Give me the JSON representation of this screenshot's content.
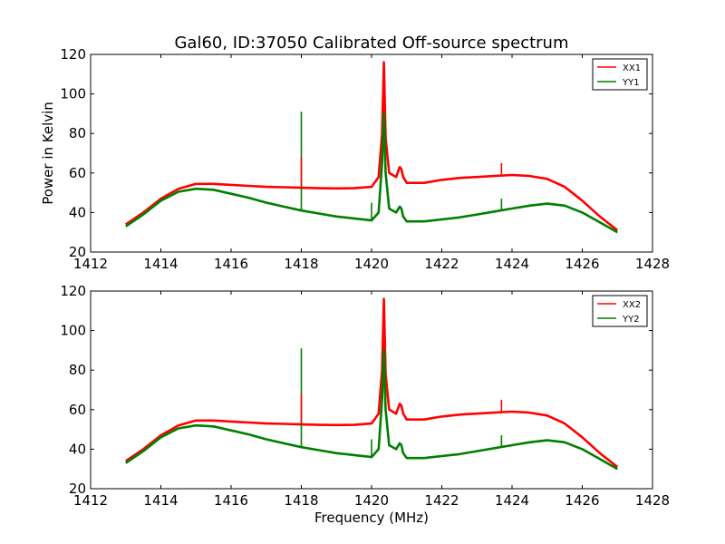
{
  "title": "Gal60, ID:37050 Calibrated Off-source spectrum",
  "chart_data": [
    {
      "type": "line",
      "ylabel": "Power in Kelvin",
      "xlabel": "",
      "xlim": [
        1412,
        1428
      ],
      "ylim": [
        20,
        120
      ],
      "xticks": [
        "1412",
        "1414",
        "1416",
        "1418",
        "1420",
        "1422",
        "1424",
        "1426",
        "1428"
      ],
      "yticks": [
        "20",
        "40",
        "60",
        "80",
        "100",
        "120"
      ],
      "legend_position": "top-right",
      "series": [
        {
          "name": "XX1",
          "color": "#ff0000",
          "x": [
            1413.0,
            1413.5,
            1414.0,
            1414.5,
            1415.0,
            1415.5,
            1416.0,
            1416.5,
            1417.0,
            1417.5,
            1418.0,
            1418.5,
            1419.0,
            1419.5,
            1420.0,
            1420.2,
            1420.3,
            1420.35,
            1420.4,
            1420.5,
            1420.7,
            1420.8,
            1420.85,
            1420.9,
            1421.0,
            1421.5,
            1422.0,
            1422.5,
            1423.0,
            1423.5,
            1424.0,
            1424.5,
            1425.0,
            1425.5,
            1426.0,
            1426.5,
            1427.0
          ],
          "y": [
            34,
            40,
            47,
            52,
            54.5,
            54.5,
            54,
            53.5,
            53,
            52.8,
            52.5,
            52.3,
            52.2,
            52.3,
            53,
            58,
            80,
            116,
            78,
            60,
            58,
            63,
            62,
            58,
            55,
            55,
            56.5,
            57.5,
            58,
            58.5,
            59,
            58.5,
            57,
            53,
            46,
            38,
            31
          ]
        },
        {
          "name": "YY1",
          "color": "#007f00",
          "x": [
            1413.0,
            1413.5,
            1414.0,
            1414.5,
            1415.0,
            1415.5,
            1416.0,
            1416.5,
            1417.0,
            1417.5,
            1418.0,
            1418.5,
            1419.0,
            1419.5,
            1420.0,
            1420.2,
            1420.3,
            1420.35,
            1420.4,
            1420.5,
            1420.7,
            1420.8,
            1420.85,
            1420.9,
            1421.0,
            1421.5,
            1422.0,
            1422.5,
            1423.0,
            1423.5,
            1424.0,
            1424.5,
            1425.0,
            1425.5,
            1426.0,
            1426.5,
            1427.0
          ],
          "y": [
            33,
            39,
            46,
            50.5,
            52,
            51.5,
            49.5,
            47.5,
            45,
            43,
            41,
            39.5,
            38,
            37,
            36,
            40,
            65,
            90,
            60,
            42,
            40,
            43,
            42,
            38,
            35.5,
            35.5,
            36.5,
            37.5,
            39,
            40.5,
            42,
            43.5,
            44.5,
            43.5,
            40,
            35,
            30
          ]
        }
      ],
      "spikes": [
        {
          "series": "YY1",
          "x": 1418.0,
          "y": 91
        },
        {
          "series": "XX1",
          "x": 1418.0,
          "y": 68
        },
        {
          "series": "YY1",
          "x": 1420.0,
          "y": 45
        },
        {
          "series": "XX1",
          "x": 1423.7,
          "y": 65
        },
        {
          "series": "YY1",
          "x": 1423.7,
          "y": 47
        }
      ]
    },
    {
      "type": "line",
      "ylabel": "",
      "xlabel": "Frequency (MHz)",
      "xlim": [
        1412,
        1428
      ],
      "ylim": [
        20,
        120
      ],
      "xticks": [
        "1412",
        "1414",
        "1416",
        "1418",
        "1420",
        "1422",
        "1424",
        "1426",
        "1428"
      ],
      "yticks": [
        "20",
        "40",
        "60",
        "80",
        "100",
        "120"
      ],
      "legend_position": "top-right",
      "series": [
        {
          "name": "XX2",
          "color": "#ff0000",
          "x": [
            1413.0,
            1413.5,
            1414.0,
            1414.5,
            1415.0,
            1415.5,
            1416.0,
            1416.5,
            1417.0,
            1417.5,
            1418.0,
            1418.5,
            1419.0,
            1419.5,
            1420.0,
            1420.2,
            1420.3,
            1420.35,
            1420.4,
            1420.5,
            1420.7,
            1420.8,
            1420.85,
            1420.9,
            1421.0,
            1421.5,
            1422.0,
            1422.5,
            1423.0,
            1423.5,
            1424.0,
            1424.5,
            1425.0,
            1425.5,
            1426.0,
            1426.5,
            1427.0
          ],
          "y": [
            34,
            40,
            47,
            52,
            54.5,
            54.5,
            54,
            53.5,
            53,
            52.8,
            52.5,
            52.3,
            52.2,
            52.3,
            53,
            58,
            80,
            116,
            78,
            60,
            58,
            63,
            62,
            58,
            55,
            55,
            56.5,
            57.5,
            58,
            58.5,
            59,
            58.5,
            57,
            53,
            46,
            38,
            31
          ]
        },
        {
          "name": "YY2",
          "color": "#007f00",
          "x": [
            1413.0,
            1413.5,
            1414.0,
            1414.5,
            1415.0,
            1415.5,
            1416.0,
            1416.5,
            1417.0,
            1417.5,
            1418.0,
            1418.5,
            1419.0,
            1419.5,
            1420.0,
            1420.2,
            1420.3,
            1420.35,
            1420.4,
            1420.5,
            1420.7,
            1420.8,
            1420.85,
            1420.9,
            1421.0,
            1421.5,
            1422.0,
            1422.5,
            1423.0,
            1423.5,
            1424.0,
            1424.5,
            1425.0,
            1425.5,
            1426.0,
            1426.5,
            1427.0
          ],
          "y": [
            33,
            39,
            46,
            50.5,
            52,
            51.5,
            49.5,
            47.5,
            45,
            43,
            41,
            39.5,
            38,
            37,
            36,
            40,
            65,
            90,
            60,
            42,
            40,
            43,
            42,
            38,
            35.5,
            35.5,
            36.5,
            37.5,
            39,
            40.5,
            42,
            43.5,
            44.5,
            43.5,
            40,
            35,
            30
          ]
        }
      ],
      "spikes": [
        {
          "series": "YY2",
          "x": 1418.0,
          "y": 91
        },
        {
          "series": "XX2",
          "x": 1418.0,
          "y": 68
        },
        {
          "series": "YY2",
          "x": 1420.0,
          "y": 45
        },
        {
          "series": "XX2",
          "x": 1423.7,
          "y": 65
        },
        {
          "series": "YY2",
          "x": 1423.7,
          "y": 47
        }
      ]
    }
  ]
}
